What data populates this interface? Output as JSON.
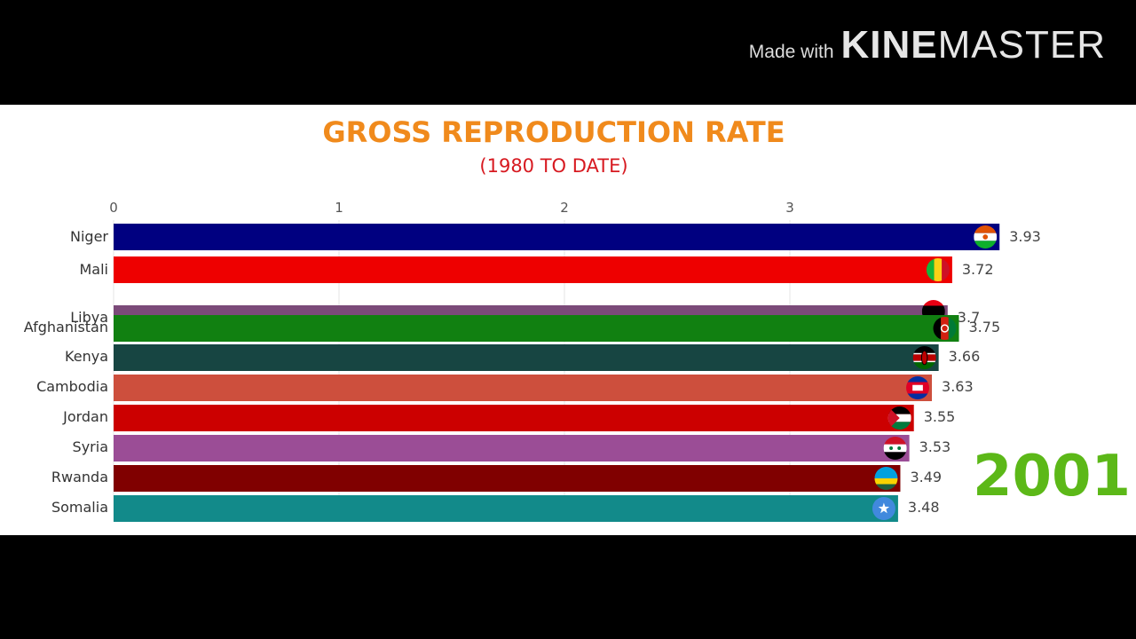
{
  "watermark": {
    "made_with": "Made with",
    "brand_a": "KINE",
    "brand_b": "MASTER"
  },
  "colors": {
    "title": "#f08a1c",
    "subtitle": "#d71920",
    "year": "#5cb818",
    "grid": "#e6e6e6",
    "axis_text": "#555555"
  },
  "chart_data": {
    "type": "bar",
    "orientation": "horizontal",
    "title": "GROSS REPRODUCTION RATE",
    "subtitle": "(1980 TO DATE)",
    "year": "2001",
    "xlim": [
      0,
      4
    ],
    "x_ticks": [
      0,
      1,
      2,
      3
    ],
    "grid": true,
    "bars": [
      {
        "country": "Niger",
        "value": 3.93,
        "label": "3.93",
        "color": "#000080",
        "flag": "niger"
      },
      {
        "country": "Mali",
        "value": 3.72,
        "label": "3.72",
        "color": "#ee0000",
        "flag": "mali"
      },
      {
        "country": "Libya",
        "value": 3.7,
        "label": "3.7",
        "color": "#7b4a79",
        "flag": "libya",
        "partially_hidden": true
      },
      {
        "country": "Afghanistan",
        "value": 3.75,
        "label": "3.75",
        "color": "#118011",
        "flag": "afghanistan"
      },
      {
        "country": "Kenya",
        "value": 3.66,
        "label": "3.66",
        "color": "#174542",
        "flag": "kenya"
      },
      {
        "country": "Cambodia",
        "value": 3.63,
        "label": "3.63",
        "color": "#cd4f3d",
        "flag": "cambodia"
      },
      {
        "country": "Jordan",
        "value": 3.55,
        "label": "3.55",
        "color": "#cc0000",
        "flag": "jordan"
      },
      {
        "country": "Syria",
        "value": 3.53,
        "label": "3.53",
        "color": "#9b4d96",
        "flag": "syria"
      },
      {
        "country": "Rwanda",
        "value": 3.49,
        "label": "3.49",
        "color": "#800000",
        "flag": "rwanda"
      },
      {
        "country": "Somalia",
        "value": 3.48,
        "label": "3.48",
        "color": "#128a8a",
        "flag": "somalia"
      }
    ]
  }
}
